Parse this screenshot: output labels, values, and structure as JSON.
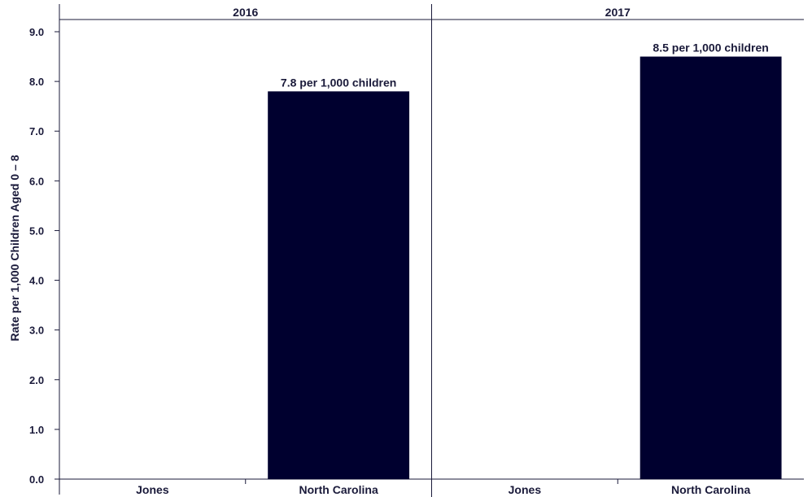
{
  "chart_data": {
    "type": "bar",
    "ylabel": "Rate per 1,000 Children Aged 0 – 8",
    "ylim": [
      0,
      9.3
    ],
    "yticks": [
      "0.0",
      "1.0",
      "2.0",
      "3.0",
      "4.0",
      "5.0",
      "6.0",
      "7.0",
      "8.0",
      "9.0"
    ],
    "ytick_values": [
      0,
      1,
      2,
      3,
      4,
      5,
      6,
      7,
      8,
      9
    ],
    "bar_color": "#00002f",
    "grid": false,
    "panels": [
      {
        "title": "2016",
        "categories": [
          "Jones",
          "North Carolina"
        ],
        "values": [
          null,
          7.8
        ],
        "labels": [
          "",
          "7.8 per 1,000 children"
        ]
      },
      {
        "title": "2017",
        "categories": [
          "Jones",
          "North Carolina"
        ],
        "values": [
          null,
          8.5
        ],
        "labels": [
          "",
          "8.5 per 1,000 children"
        ]
      }
    ]
  }
}
